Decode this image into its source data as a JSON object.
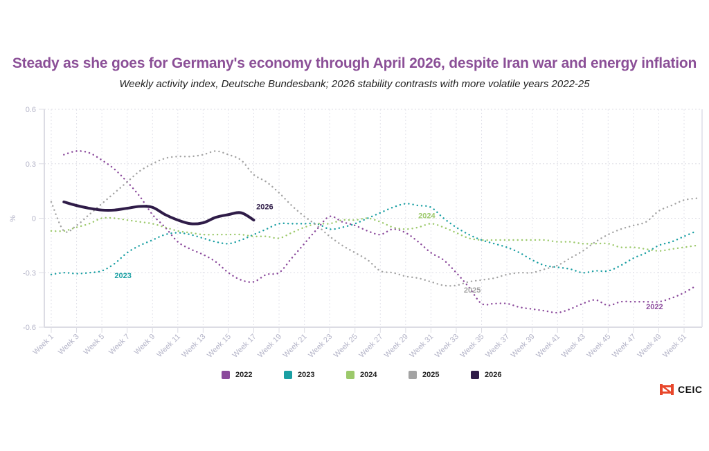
{
  "header": {
    "title": "Steady as she goes for Germany's economy through April 2026, despite Iran war and energy inflation",
    "subtitle": "Weekly activity index, Deutsche Bundesbank; 2026 stability contrasts with more volatile years 2022-25"
  },
  "branding": {
    "logo_text": "CEIC",
    "logo_color": "#e8472b"
  },
  "chart_data": {
    "type": "line",
    "title": "Steady as she goes for Germany's economy through April 2026, despite Iran war and energy inflation",
    "subtitle": "Weekly activity index, Deutsche Bundesbank; 2026 stability contrasts with more volatile years 2022-25",
    "xlabel": "",
    "ylabel": "%",
    "ylim": [
      -0.6,
      0.6
    ],
    "yticks": [
      "0.6",
      "0.3",
      "0",
      "-0.3",
      "-0.6"
    ],
    "ytick_values": [
      0.6,
      0.3,
      0,
      -0.3,
      -0.6
    ],
    "xticks": [
      "Week 1",
      "Week 3",
      "Week 5",
      "Week 7",
      "Week 9",
      "Week 11",
      "Week 13",
      "Week 15",
      "Week 17",
      "Week 19",
      "Week 21",
      "Week 23",
      "Week 25",
      "Week 27",
      "Week 29",
      "Week 31",
      "Week 33",
      "Week 35",
      "Week 37",
      "Week 39",
      "Week 41",
      "Week 43",
      "Week 45",
      "Week 47",
      "Week 49",
      "Week 51"
    ],
    "xtick_weeks": [
      1,
      3,
      5,
      7,
      9,
      11,
      13,
      15,
      17,
      19,
      21,
      23,
      25,
      27,
      29,
      31,
      33,
      35,
      37,
      39,
      41,
      43,
      45,
      47,
      49,
      51
    ],
    "x_range_weeks": [
      1,
      52
    ],
    "grid": true,
    "legend_position": "bottom",
    "series": [
      {
        "name": "2022",
        "color": "#8b4a9c",
        "style": "dotted",
        "label_at_week": 48,
        "label_value": -0.5,
        "start_week": 2,
        "values": [
          0.35,
          0.37,
          0.36,
          0.32,
          0.27,
          0.2,
          0.12,
          0.02,
          -0.05,
          -0.13,
          -0.17,
          -0.2,
          -0.24,
          -0.3,
          -0.34,
          -0.35,
          -0.31,
          -0.3,
          -0.22,
          -0.14,
          -0.06,
          0.01,
          -0.02,
          -0.04,
          -0.07,
          -0.09,
          -0.06,
          -0.08,
          -0.13,
          -0.19,
          -0.23,
          -0.3,
          -0.38,
          -0.47,
          -0.47,
          -0.47,
          -0.49,
          -0.5,
          -0.51,
          -0.52,
          -0.5,
          -0.47,
          -0.45,
          -0.48,
          -0.46,
          -0.46,
          -0.46,
          -0.46,
          -0.44,
          -0.41,
          -0.37
        ]
      },
      {
        "name": "2023",
        "color": "#1a9fa3",
        "style": "dotted",
        "label_at_week": 6,
        "label_value": -0.33,
        "start_week": 1,
        "values": [
          -0.31,
          -0.3,
          -0.305,
          -0.3,
          -0.29,
          -0.25,
          -0.19,
          -0.15,
          -0.12,
          -0.09,
          -0.08,
          -0.09,
          -0.11,
          -0.13,
          -0.14,
          -0.12,
          -0.09,
          -0.06,
          -0.03,
          -0.03,
          -0.03,
          -0.03,
          -0.06,
          -0.05,
          -0.03,
          0.0,
          0.03,
          0.06,
          0.08,
          0.07,
          0.06,
          0.0,
          -0.05,
          -0.09,
          -0.12,
          -0.14,
          -0.16,
          -0.19,
          -0.23,
          -0.26,
          -0.27,
          -0.28,
          -0.3,
          -0.29,
          -0.29,
          -0.26,
          -0.22,
          -0.19,
          -0.15,
          -0.13,
          -0.1,
          -0.07
        ]
      },
      {
        "name": "2024",
        "color": "#9cc96b",
        "style": "dotted",
        "label_at_week": 30,
        "label_value": 0.0,
        "start_week": 1,
        "values": [
          -0.07,
          -0.07,
          -0.05,
          -0.03,
          0.0,
          0.0,
          -0.01,
          -0.02,
          -0.03,
          -0.05,
          -0.07,
          -0.08,
          -0.09,
          -0.09,
          -0.09,
          -0.09,
          -0.1,
          -0.1,
          -0.11,
          -0.08,
          -0.05,
          -0.03,
          -0.03,
          -0.01,
          -0.01,
          0.0,
          -0.02,
          -0.05,
          -0.06,
          -0.05,
          -0.03,
          -0.05,
          -0.08,
          -0.11,
          -0.12,
          -0.12,
          -0.12,
          -0.12,
          -0.12,
          -0.12,
          -0.13,
          -0.13,
          -0.14,
          -0.14,
          -0.14,
          -0.16,
          -0.16,
          -0.17,
          -0.18,
          -0.17,
          -0.16,
          -0.15
        ]
      },
      {
        "name": "2025",
        "color": "#a3a3a3",
        "style": "dotted",
        "label_at_week": 33.6,
        "label_value": -0.41,
        "start_week": 1,
        "values": [
          0.09,
          -0.07,
          -0.04,
          0.02,
          0.08,
          0.14,
          0.2,
          0.26,
          0.3,
          0.33,
          0.34,
          0.34,
          0.35,
          0.37,
          0.35,
          0.32,
          0.24,
          0.2,
          0.14,
          0.07,
          0.01,
          -0.04,
          -0.1,
          -0.15,
          -0.19,
          -0.23,
          -0.29,
          -0.3,
          -0.32,
          -0.33,
          -0.35,
          -0.37,
          -0.37,
          -0.35,
          -0.34,
          -0.33,
          -0.31,
          -0.3,
          -0.3,
          -0.28,
          -0.26,
          -0.22,
          -0.18,
          -0.13,
          -0.09,
          -0.06,
          -0.04,
          -0.02,
          0.04,
          0.07,
          0.1,
          0.11
        ]
      },
      {
        "name": "2026",
        "color": "#2f1c48",
        "style": "solid",
        "label_at_week": 17.2,
        "label_value": 0.05,
        "start_week": 2,
        "values": [
          0.09,
          0.07,
          0.055,
          0.045,
          0.045,
          0.055,
          0.065,
          0.06,
          0.02,
          -0.01,
          -0.03,
          -0.025,
          0.005,
          0.02,
          0.03,
          -0.01
        ]
      }
    ]
  }
}
